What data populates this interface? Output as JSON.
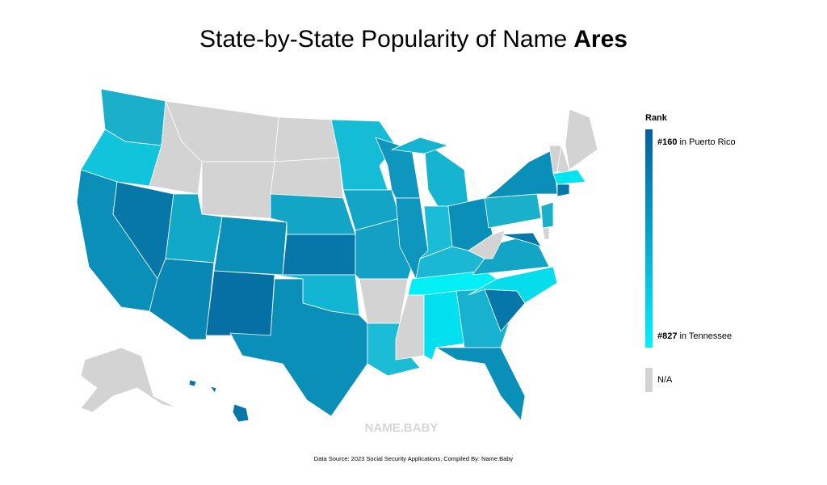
{
  "header": {
    "title": "State-by-State Popularity of Name",
    "name": "Ares"
  },
  "legend": {
    "title": "Rank",
    "high": {
      "rank": "#160",
      "place": "in Puerto Rico",
      "color": "#065f9e"
    },
    "low": {
      "rank": "#827",
      "place": "in Tennessee",
      "color": "#00f2ff"
    },
    "na": {
      "label": "N/A",
      "color": "#d3d3d3"
    }
  },
  "watermark": "NAME.BABY",
  "footer": "Data Source: 2023 Social Security Applications; Compiled By: Name.Baby"
}
